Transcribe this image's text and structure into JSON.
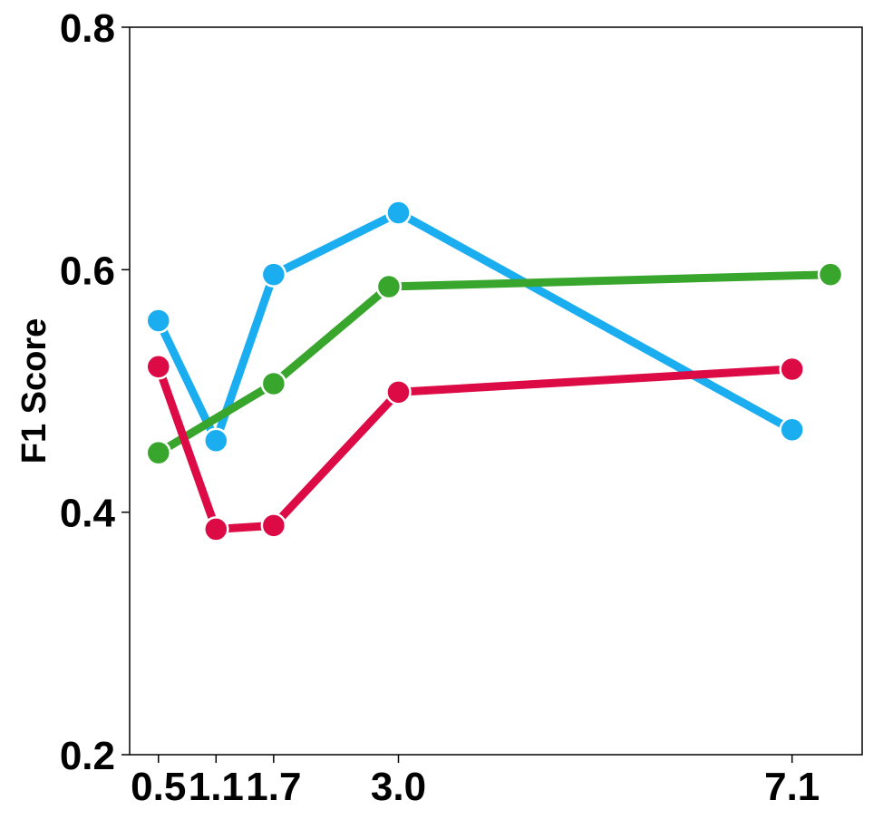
{
  "chart_data": {
    "type": "line",
    "title": "",
    "xlabel": "",
    "ylabel": "F1 Score",
    "xlim": [
      0.2,
      7.83
    ],
    "ylim": [
      0.2,
      0.8
    ],
    "xticks": [
      0.5,
      1.1,
      1.7,
      3.0,
      7.1
    ],
    "xtick_labels": [
      "0.5",
      "1.1",
      "1.7",
      "3.0",
      "7.1"
    ],
    "yticks": [
      0.2,
      0.4,
      0.6,
      0.8
    ],
    "ytick_labels": [
      "0.2",
      "0.4",
      "0.6",
      "0.8"
    ],
    "grid": false,
    "series": [
      {
        "color": "#1aaef0",
        "x": [
          0.5,
          1.1,
          1.7,
          3.0,
          7.1
        ],
        "y": [
          0.558,
          0.459,
          0.596,
          0.647,
          0.468
        ]
      },
      {
        "color": "#38a62d",
        "x": [
          0.5,
          1.7,
          2.9,
          7.5
        ],
        "y": [
          0.449,
          0.506,
          0.586,
          0.596
        ]
      },
      {
        "color": "#dc0a45",
        "x": [
          0.5,
          1.1,
          1.7,
          3.0,
          7.1
        ],
        "y": [
          0.52,
          0.386,
          0.389,
          0.499,
          0.518
        ]
      }
    ]
  }
}
